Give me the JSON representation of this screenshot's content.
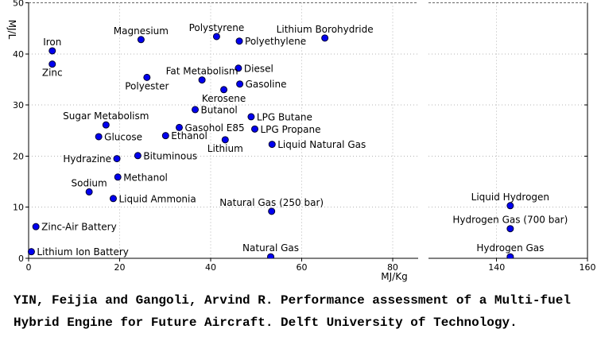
{
  "chart_data": {
    "type": "scatter",
    "title": "",
    "xlabel": "MJ/Kg",
    "ylabel": "MJ/L",
    "ylim": [
      0,
      50
    ],
    "yticks": [
      0,
      10,
      20,
      30,
      40,
      50
    ],
    "grid_y": [
      10,
      20,
      30,
      40
    ],
    "grid": "dotted",
    "legend_position": "none",
    "broken_x_axis": true,
    "panels": [
      {
        "id": "left",
        "xlim": [
          0,
          85.6
        ],
        "xticks": [
          0,
          20,
          40,
          60,
          80
        ],
        "grid_x": [
          20,
          40,
          60,
          80
        ]
      },
      {
        "id": "right",
        "xlim": [
          125,
          160
        ],
        "xticks": [
          140,
          160
        ],
        "grid_x": [
          140
        ]
      }
    ],
    "points": [
      {
        "label": "Lithium Ion Battery",
        "x": 0.6,
        "y": 1.3,
        "panel": "left",
        "label_pos": "right"
      },
      {
        "label": "Zinc-Air Battery",
        "x": 1.6,
        "y": 6.2,
        "panel": "left",
        "label_pos": "right"
      },
      {
        "label": "Iron",
        "x": 5.2,
        "y": 40.6,
        "panel": "left",
        "label_pos": "above"
      },
      {
        "label": "Zinc",
        "x": 5.2,
        "y": 38.0,
        "panel": "left",
        "label_pos": "below"
      },
      {
        "label": "Sodium",
        "x": 13.3,
        "y": 13.0,
        "panel": "left",
        "label_pos": "above"
      },
      {
        "label": "Glucose",
        "x": 15.4,
        "y": 23.8,
        "panel": "left",
        "label_pos": "right"
      },
      {
        "label": "Sugar Metabolism",
        "x": 17.0,
        "y": 26.1,
        "panel": "left",
        "label_pos": "above"
      },
      {
        "label": "Liquid Ammonia",
        "x": 18.6,
        "y": 11.7,
        "panel": "left",
        "label_pos": "right"
      },
      {
        "label": "Hydrazine",
        "x": 19.4,
        "y": 19.5,
        "panel": "left",
        "label_pos": "left"
      },
      {
        "label": "Methanol",
        "x": 19.6,
        "y": 15.9,
        "panel": "left",
        "label_pos": "right"
      },
      {
        "label": "Bituminous",
        "x": 24.0,
        "y": 20.1,
        "panel": "left",
        "label_pos": "right"
      },
      {
        "label": "Magnesium",
        "x": 24.7,
        "y": 42.8,
        "panel": "left",
        "label_pos": "above"
      },
      {
        "label": "Polyester",
        "x": 26.0,
        "y": 35.4,
        "panel": "left",
        "label_pos": "below"
      },
      {
        "label": "Ethanol",
        "x": 30.1,
        "y": 24.0,
        "panel": "left",
        "label_pos": "right"
      },
      {
        "label": "Gasohol E85",
        "x": 33.1,
        "y": 25.6,
        "panel": "left",
        "label_pos": "right"
      },
      {
        "label": "Butanol",
        "x": 36.6,
        "y": 29.1,
        "panel": "left",
        "label_pos": "right"
      },
      {
        "label": "Fat Metabolism",
        "x": 38.1,
        "y": 34.9,
        "panel": "left",
        "label_pos": "above"
      },
      {
        "label": "Polystyrene",
        "x": 41.3,
        "y": 43.4,
        "panel": "left",
        "label_pos": "above"
      },
      {
        "label": "Kerosene",
        "x": 42.9,
        "y": 33.0,
        "panel": "left",
        "label_pos": "below"
      },
      {
        "label": "Lithium",
        "x": 43.2,
        "y": 23.2,
        "panel": "left",
        "label_pos": "below"
      },
      {
        "label": "Diesel",
        "x": 46.1,
        "y": 37.2,
        "panel": "left",
        "label_pos": "right"
      },
      {
        "label": "Polyethylene",
        "x": 46.3,
        "y": 42.5,
        "panel": "left",
        "label_pos": "right"
      },
      {
        "label": "Gasoline",
        "x": 46.4,
        "y": 34.1,
        "panel": "left",
        "label_pos": "right"
      },
      {
        "label": "LPG Butane",
        "x": 48.9,
        "y": 27.7,
        "panel": "left",
        "label_pos": "right"
      },
      {
        "label": "LPG Propane",
        "x": 49.7,
        "y": 25.3,
        "panel": "left",
        "label_pos": "right"
      },
      {
        "label": "Natural Gas",
        "x": 53.2,
        "y": 0.3,
        "panel": "left",
        "label_pos": "above"
      },
      {
        "label": "Natural Gas (250 bar)",
        "x": 53.4,
        "y": 9.2,
        "panel": "left",
        "label_pos": "above"
      },
      {
        "label": "Liquid Natural Gas",
        "x": 53.5,
        "y": 22.3,
        "panel": "left",
        "label_pos": "right"
      },
      {
        "label": "Lithium Borohydride",
        "x": 65.1,
        "y": 43.1,
        "panel": "left",
        "label_pos": "above"
      },
      {
        "label": "Hydrogen Gas",
        "x": 143,
        "y": 0.3,
        "panel": "right",
        "label_pos": "above"
      },
      {
        "label": "Hydrogen Gas (700 bar)",
        "x": 143,
        "y": 5.8,
        "panel": "right",
        "label_pos": "above"
      },
      {
        "label": "Liquid Hydrogen",
        "x": 143,
        "y": 10.3,
        "panel": "right",
        "label_pos": "above"
      }
    ]
  },
  "colors": {
    "background": "#ffffff",
    "point_fill": "#0000f0",
    "point_edge": "#000030",
    "grid": "#b4b4b4",
    "top_border": "#666666",
    "spine": "#000000",
    "text": "#000000"
  },
  "caption": {
    "line1": "YIN, Feijia and Gangoli, Arvind R. Performance assessment of a Multi-fuel",
    "line2": "Hybrid Engine for Future Aircraft. Delft University of Technology."
  }
}
